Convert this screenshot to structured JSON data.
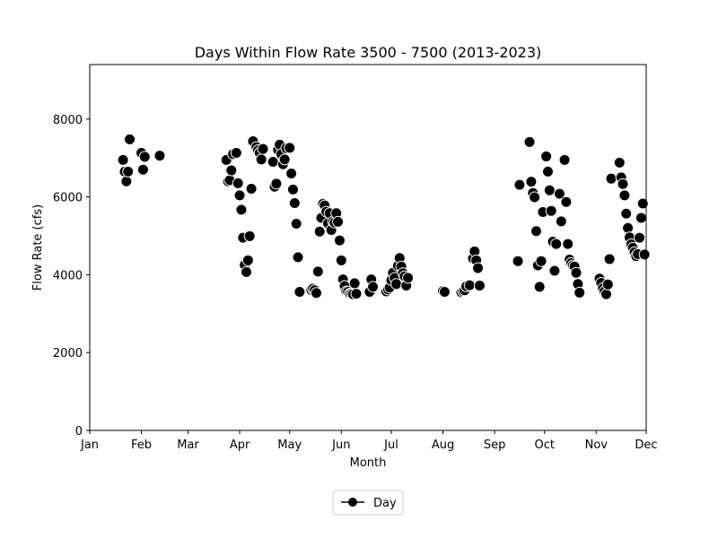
{
  "chart_data": {
    "type": "scatter",
    "title": "Days Within Flow Rate 3500 - 7500 (2013-2023)",
    "xlabel": "Month",
    "ylabel": "Flow Rate (cfs)",
    "x_ticks": [
      {
        "label": "Jan",
        "day": 1
      },
      {
        "label": "Feb",
        "day": 32
      },
      {
        "label": "Mar",
        "day": 60
      },
      {
        "label": "Apr",
        "day": 91
      },
      {
        "label": "May",
        "day": 121
      },
      {
        "label": "Jun",
        "day": 152
      },
      {
        "label": "Jul",
        "day": 182
      },
      {
        "label": "Aug",
        "day": 213
      },
      {
        "label": "Sep",
        "day": 244
      },
      {
        "label": "Oct",
        "day": 274
      },
      {
        "label": "Nov",
        "day": 305
      },
      {
        "label": "Dec",
        "day": 335
      }
    ],
    "xlim": [
      1,
      335
    ],
    "ylim": [
      0,
      9400
    ],
    "y_ticks": [
      0,
      2000,
      4000,
      6000,
      8000
    ],
    "grid": false,
    "legend": {
      "position": "bottom-center",
      "entries": [
        "Day"
      ]
    },
    "marker_color": "#000000",
    "marker_edge": "#ffffff",
    "series": [
      {
        "name": "Day",
        "points": [
          [
            21,
            6950
          ],
          [
            22,
            6650
          ],
          [
            23,
            6400
          ],
          [
            24,
            6650
          ],
          [
            25,
            7480
          ],
          [
            32,
            7130
          ],
          [
            33,
            6700
          ],
          [
            34,
            7030
          ],
          [
            43,
            7060
          ],
          [
            83,
            6950
          ],
          [
            84,
            6400
          ],
          [
            85,
            6430
          ],
          [
            86,
            6680
          ],
          [
            87,
            7100
          ],
          [
            89,
            7130
          ],
          [
            90,
            6350
          ],
          [
            91,
            6040
          ],
          [
            92,
            5670
          ],
          [
            93,
            4950
          ],
          [
            94,
            4250
          ],
          [
            95,
            4070
          ],
          [
            96,
            4370
          ],
          [
            97,
            4990
          ],
          [
            98,
            6210
          ],
          [
            99,
            7430
          ],
          [
            101,
            7280
          ],
          [
            102,
            7200
          ],
          [
            103,
            7130
          ],
          [
            104,
            6960
          ],
          [
            105,
            7230
          ],
          [
            111,
            6900
          ],
          [
            112,
            6260
          ],
          [
            113,
            6340
          ],
          [
            114,
            7210
          ],
          [
            115,
            7340
          ],
          [
            116,
            7100
          ],
          [
            117,
            6840
          ],
          [
            118,
            6960
          ],
          [
            119,
            7250
          ],
          [
            121,
            7260
          ],
          [
            122,
            6600
          ],
          [
            123,
            6190
          ],
          [
            124,
            5840
          ],
          [
            125,
            5310
          ],
          [
            126,
            4450
          ],
          [
            127,
            3560
          ],
          [
            134,
            3610
          ],
          [
            135,
            3640
          ],
          [
            136,
            3600
          ],
          [
            137,
            3530
          ],
          [
            138,
            4080
          ],
          [
            139,
            5110
          ],
          [
            140,
            5460
          ],
          [
            141,
            5820
          ],
          [
            142,
            5780
          ],
          [
            143,
            5620
          ],
          [
            144,
            5320
          ],
          [
            145,
            5580
          ],
          [
            146,
            5150
          ],
          [
            147,
            5370
          ],
          [
            148,
            5340
          ],
          [
            149,
            5580
          ],
          [
            150,
            5360
          ],
          [
            151,
            4880
          ],
          [
            152,
            4370
          ],
          [
            153,
            3880
          ],
          [
            154,
            3710
          ],
          [
            155,
            3570
          ],
          [
            156,
            3560
          ],
          [
            157,
            3510
          ],
          [
            158,
            3510
          ],
          [
            159,
            3500
          ],
          [
            160,
            3780
          ],
          [
            161,
            3510
          ],
          [
            169,
            3560
          ],
          [
            170,
            3880
          ],
          [
            171,
            3690
          ],
          [
            179,
            3570
          ],
          [
            180,
            3620
          ],
          [
            181,
            3670
          ],
          [
            182,
            3860
          ],
          [
            183,
            4050
          ],
          [
            184,
            3920
          ],
          [
            185,
            3760
          ],
          [
            186,
            4230
          ],
          [
            187,
            4430
          ],
          [
            188,
            4210
          ],
          [
            189,
            4040
          ],
          [
            190,
            3960
          ],
          [
            191,
            3720
          ],
          [
            192,
            3920
          ],
          [
            213,
            3580
          ],
          [
            214,
            3560
          ],
          [
            224,
            3550
          ],
          [
            225,
            3580
          ],
          [
            226,
            3600
          ],
          [
            227,
            3700
          ],
          [
            229,
            3730
          ],
          [
            231,
            4420
          ],
          [
            232,
            4600
          ],
          [
            233,
            4370
          ],
          [
            234,
            4170
          ],
          [
            235,
            3720
          ],
          [
            258,
            4350
          ],
          [
            259,
            6310
          ],
          [
            265,
            7410
          ],
          [
            266,
            6390
          ],
          [
            267,
            6100
          ],
          [
            268,
            5990
          ],
          [
            269,
            5120
          ],
          [
            270,
            4240
          ],
          [
            271,
            3690
          ],
          [
            272,
            4350
          ],
          [
            273,
            5610
          ],
          [
            275,
            7040
          ],
          [
            276,
            6650
          ],
          [
            277,
            6170
          ],
          [
            278,
            5640
          ],
          [
            279,
            4850
          ],
          [
            280,
            4100
          ],
          [
            281,
            4790
          ],
          [
            283,
            6080
          ],
          [
            284,
            5370
          ],
          [
            286,
            6950
          ],
          [
            287,
            5870
          ],
          [
            288,
            4790
          ],
          [
            289,
            4390
          ],
          [
            290,
            4300
          ],
          [
            291,
            4240
          ],
          [
            292,
            4210
          ],
          [
            293,
            4050
          ],
          [
            294,
            3760
          ],
          [
            295,
            3540
          ],
          [
            307,
            3900
          ],
          [
            308,
            3790
          ],
          [
            309,
            3650
          ],
          [
            310,
            3570
          ],
          [
            311,
            3500
          ],
          [
            312,
            3750
          ],
          [
            313,
            4400
          ],
          [
            314,
            6470
          ],
          [
            319,
            6880
          ],
          [
            320,
            6500
          ],
          [
            321,
            6330
          ],
          [
            322,
            6040
          ],
          [
            323,
            5570
          ],
          [
            324,
            5200
          ],
          [
            325,
            4960
          ],
          [
            326,
            4780
          ],
          [
            327,
            4690
          ],
          [
            328,
            4580
          ],
          [
            329,
            4480
          ],
          [
            330,
            4530
          ],
          [
            331,
            4950
          ],
          [
            332,
            5460
          ],
          [
            333,
            5830
          ],
          [
            334,
            4520
          ]
        ]
      }
    ]
  }
}
